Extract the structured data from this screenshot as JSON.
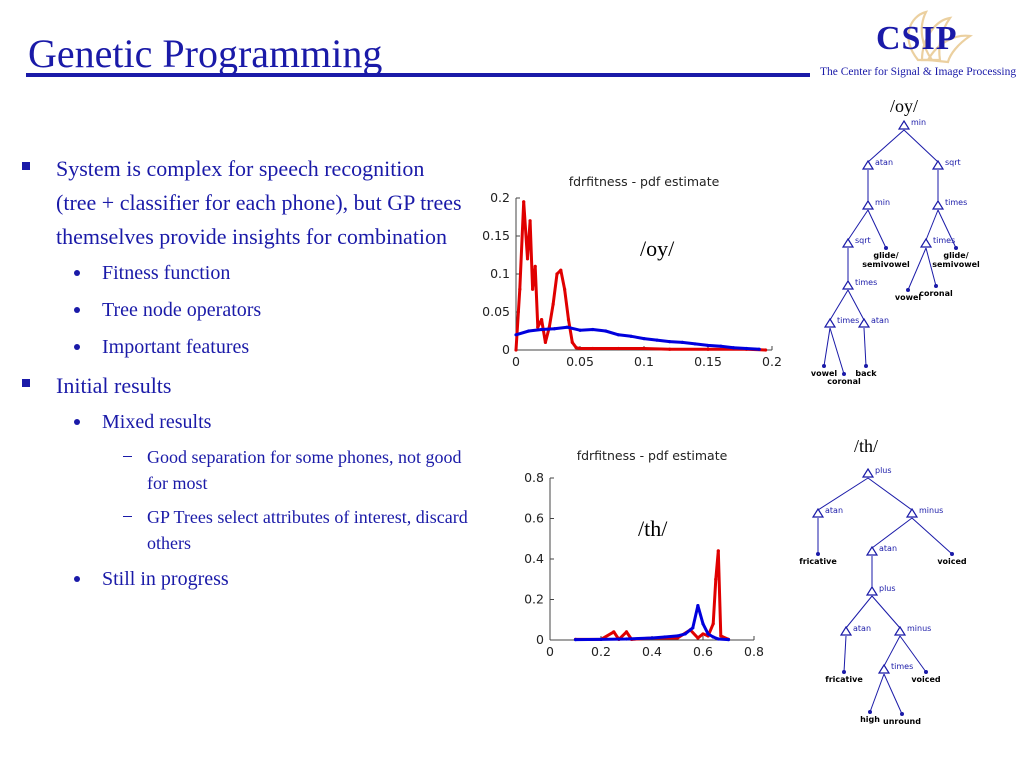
{
  "slide": {
    "title": "Genetic Programming",
    "logo": {
      "name": "CSIP",
      "subtitle": "The Center for Signal & Image Processing"
    },
    "bullets": [
      {
        "level": 1,
        "text": "System is complex for speech recognition (tree + classifier for each phone), but GP trees themselves provide insights for combination"
      },
      {
        "level": 2,
        "text": "Fitness function"
      },
      {
        "level": 2,
        "text": "Tree node operators"
      },
      {
        "level": 2,
        "text": "Important features"
      },
      {
        "level": 1,
        "text": "Initial results"
      },
      {
        "level": 2,
        "text": "Mixed results"
      },
      {
        "level": 3,
        "text": "Good separation for some phones, not good for most"
      },
      {
        "level": 3,
        "text": "GP Trees select attributes of interest, discard others"
      },
      {
        "level": 2,
        "text": "Still in progress"
      }
    ]
  },
  "colors": {
    "accent": "#1a1aa8",
    "red_series": "#e00000",
    "blue_series": "#0000dd"
  },
  "chart_data": [
    {
      "type": "line",
      "title": "fdrfitness - pdf estimate",
      "annotation": "/oy/",
      "xlim": [
        0,
        0.2
      ],
      "ylim": [
        0,
        0.2
      ],
      "xticks": [
        "0",
        "0.05",
        "0.1",
        "0.15",
        "0.2"
      ],
      "yticks": [
        "0",
        "0.05",
        "0.1",
        "0.15",
        "0.2"
      ],
      "series": [
        {
          "color": "#e00000",
          "x": [
            0,
            0.003,
            0.006,
            0.009,
            0.011,
            0.013,
            0.015,
            0.017,
            0.02,
            0.023,
            0.026,
            0.029,
            0.032,
            0.035,
            0.038,
            0.041,
            0.044,
            0.047,
            0.05,
            0.06,
            0.08,
            0.1,
            0.12,
            0.15,
            0.18,
            0.195
          ],
          "y": [
            0,
            0.08,
            0.195,
            0.12,
            0.17,
            0.08,
            0.11,
            0.03,
            0.04,
            0.01,
            0.03,
            0.06,
            0.1,
            0.105,
            0.08,
            0.04,
            0.01,
            0.003,
            0.002,
            0.002,
            0.002,
            0.002,
            0.001,
            0.001,
            0.001,
            0
          ]
        },
        {
          "color": "#0000dd",
          "x": [
            0,
            0.01,
            0.02,
            0.03,
            0.04,
            0.05,
            0.06,
            0.07,
            0.08,
            0.09,
            0.1,
            0.11,
            0.12,
            0.13,
            0.14,
            0.15,
            0.16,
            0.17,
            0.18,
            0.19
          ],
          "y": [
            0.02,
            0.025,
            0.027,
            0.028,
            0.03,
            0.026,
            0.027,
            0.025,
            0.02,
            0.018,
            0.015,
            0.013,
            0.011,
            0.01,
            0.008,
            0.006,
            0.005,
            0.003,
            0.002,
            0.001
          ]
        }
      ]
    },
    {
      "type": "line",
      "title": "fdrfitness - pdf estimate",
      "annotation": "/th/",
      "xlim": [
        0,
        0.8
      ],
      "ylim": [
        0,
        0.8
      ],
      "xticks": [
        "0",
        "0.2",
        "0.4",
        "0.6",
        "0.8"
      ],
      "yticks": [
        "0",
        "0.2",
        "0.4",
        "0.6",
        "0.8"
      ],
      "series": [
        {
          "color": "#e00000",
          "x": [
            0.1,
            0.2,
            0.25,
            0.27,
            0.3,
            0.32,
            0.4,
            0.5,
            0.55,
            0.58,
            0.6,
            0.62,
            0.64,
            0.65,
            0.66,
            0.67,
            0.7
          ],
          "y": [
            0.003,
            0.003,
            0.04,
            0.003,
            0.04,
            0.003,
            0.01,
            0.01,
            0.05,
            0.01,
            0.03,
            0.02,
            0.08,
            0.3,
            0.44,
            0.02,
            0.003
          ]
        },
        {
          "color": "#0000dd",
          "x": [
            0.1,
            0.2,
            0.3,
            0.4,
            0.45,
            0.5,
            0.53,
            0.56,
            0.58,
            0.6,
            0.62,
            0.64,
            0.66,
            0.7
          ],
          "y": [
            0.002,
            0.003,
            0.005,
            0.01,
            0.015,
            0.02,
            0.03,
            0.06,
            0.17,
            0.08,
            0.03,
            0.015,
            0.005,
            0.002
          ]
        }
      ]
    }
  ],
  "trees": [
    {
      "label": "/oy/",
      "nodes": [
        {
          "id": "n1",
          "text": "min",
          "kind": "op"
        },
        {
          "id": "n2",
          "text": "atan",
          "kind": "op"
        },
        {
          "id": "n3",
          "text": "sqrt",
          "kind": "op"
        },
        {
          "id": "n4",
          "text": "min",
          "kind": "op"
        },
        {
          "id": "n5",
          "text": "times",
          "kind": "op"
        },
        {
          "id": "n6",
          "text": "sqrt",
          "kind": "op"
        },
        {
          "id": "n7",
          "text": "glide/ semivowel",
          "kind": "leaf"
        },
        {
          "id": "n8",
          "text": "times",
          "kind": "op"
        },
        {
          "id": "n9",
          "text": "glide/ semivowel",
          "kind": "leaf"
        },
        {
          "id": "n10",
          "text": "times",
          "kind": "op"
        },
        {
          "id": "n11",
          "text": "vowel",
          "kind": "leaf"
        },
        {
          "id": "n12",
          "text": "coronal",
          "kind": "leaf"
        },
        {
          "id": "n13",
          "text": "times",
          "kind": "op"
        },
        {
          "id": "n14",
          "text": "atan",
          "kind": "op"
        },
        {
          "id": "n15",
          "text": "vowel",
          "kind": "leaf"
        },
        {
          "id": "n16",
          "text": "coronal",
          "kind": "leaf"
        },
        {
          "id": "n17",
          "text": "back",
          "kind": "leaf"
        }
      ]
    },
    {
      "label": "/th/",
      "nodes": [
        {
          "id": "t1",
          "text": "plus",
          "kind": "op"
        },
        {
          "id": "t2",
          "text": "atan",
          "kind": "op"
        },
        {
          "id": "t3",
          "text": "minus",
          "kind": "op"
        },
        {
          "id": "t4",
          "text": "fricative",
          "kind": "leaf"
        },
        {
          "id": "t5",
          "text": "atan",
          "kind": "op"
        },
        {
          "id": "t6",
          "text": "voiced",
          "kind": "leaf"
        },
        {
          "id": "t7",
          "text": "plus",
          "kind": "op"
        },
        {
          "id": "t8",
          "text": "atan",
          "kind": "op"
        },
        {
          "id": "t9",
          "text": "minus",
          "kind": "op"
        },
        {
          "id": "t10",
          "text": "fricative",
          "kind": "leaf"
        },
        {
          "id": "t11",
          "text": "times",
          "kind": "op"
        },
        {
          "id": "t12",
          "text": "voiced",
          "kind": "leaf"
        },
        {
          "id": "t13",
          "text": "high",
          "kind": "leaf"
        },
        {
          "id": "t14",
          "text": "unround",
          "kind": "leaf"
        }
      ]
    }
  ]
}
